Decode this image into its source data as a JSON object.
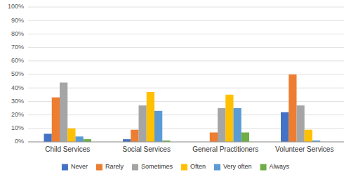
{
  "chart_data": {
    "type": "bar",
    "categories": [
      "Child Services",
      "Social Services",
      "General Practitioners",
      "Volunteer Services"
    ],
    "series": [
      {
        "name": "Never",
        "color": "#4472c4",
        "values": [
          6,
          2,
          0,
          22
        ]
      },
      {
        "name": "Rarely",
        "color": "#ed7d31",
        "values": [
          33,
          9,
          7,
          50
        ]
      },
      {
        "name": "Sometimes",
        "color": "#a5a5a5",
        "values": [
          44,
          27,
          25,
          27
        ]
      },
      {
        "name": "Often",
        "color": "#ffc000",
        "values": [
          10,
          37,
          35,
          9
        ]
      },
      {
        "name": "Very often",
        "color": "#5b9bd5",
        "values": [
          4,
          23,
          25,
          1
        ]
      },
      {
        "name": "Always",
        "color": "#70ad47",
        "values": [
          2,
          1,
          7,
          0
        ]
      }
    ],
    "ylim": [
      0,
      100
    ],
    "yticks": [
      {
        "value": 0,
        "label": "0%"
      },
      {
        "value": 10,
        "label": "10%"
      },
      {
        "value": 20,
        "label": "20%"
      },
      {
        "value": 30,
        "label": "30%"
      },
      {
        "value": 40,
        "label": "40%"
      },
      {
        "value": 50,
        "label": "50%"
      },
      {
        "value": 60,
        "label": "60%"
      },
      {
        "value": 70,
        "label": "70%"
      },
      {
        "value": 80,
        "label": "80%"
      },
      {
        "value": 90,
        "label": "90%"
      },
      {
        "value": 100,
        "label": "100%"
      }
    ],
    "grid": true,
    "legend": "bottom"
  }
}
